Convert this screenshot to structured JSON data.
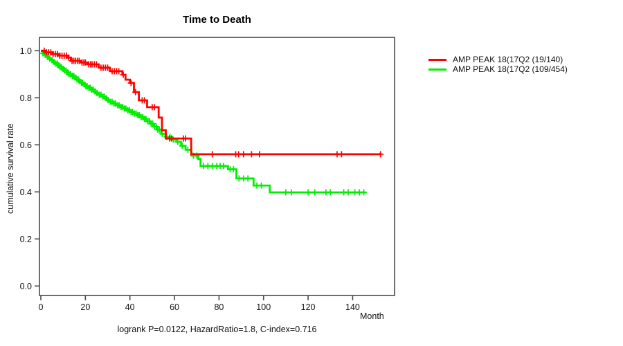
{
  "chart_data": {
    "type": "line",
    "subtype": "kaplan-meier-step",
    "title": "Time to Death",
    "xlabel": "Month",
    "ylabel": "cumulative survival rate",
    "annotation": "logrank P=0.0122, HazardRatio=1.8, C-index=0.716",
    "xticks": [
      0,
      20,
      40,
      60,
      80,
      100,
      120,
      140
    ],
    "yticks": [
      0.0,
      0.2,
      0.4,
      0.6,
      0.8,
      1.0
    ],
    "xlim": [
      -0.6,
      159
    ],
    "ylim": [
      -0.04,
      1.06
    ],
    "grid": false,
    "legend_position": "right-outside",
    "axis_color": "#4a4a4a",
    "tick_label_color": "#111111",
    "series": [
      {
        "name": "AMP PEAK 18(17Q2 (19/140)",
        "color": "#ff0000",
        "steps": [
          [
            0,
            1.0
          ],
          [
            2,
            0.993
          ],
          [
            5,
            0.986
          ],
          [
            8,
            0.979
          ],
          [
            12,
            0.971
          ],
          [
            13.5,
            0.957
          ],
          [
            18,
            0.95
          ],
          [
            21,
            0.942
          ],
          [
            26,
            0.928
          ],
          [
            31,
            0.913
          ],
          [
            36.6,
            0.898
          ],
          [
            38,
            0.877
          ],
          [
            40,
            0.863
          ],
          [
            41.8,
            0.824
          ],
          [
            44,
            0.789
          ],
          [
            47.7,
            0.76
          ],
          [
            52.9,
            0.716
          ],
          [
            54.4,
            0.662
          ],
          [
            56.1,
            0.627
          ],
          [
            67.5,
            0.56
          ],
          [
            153,
            0.56
          ]
        ],
        "censor_months": [
          1.5,
          2.5,
          3.5,
          4.5,
          5.5,
          6.5,
          7.5,
          8.5,
          9.5,
          10.5,
          11.5,
          12.5,
          14,
          14.8,
          15.6,
          16.4,
          17.2,
          18.5,
          19.3,
          20,
          21.5,
          22.3,
          23,
          24,
          25,
          27,
          28,
          29,
          30,
          32,
          33,
          34,
          35,
          37,
          40.5,
          42.5,
          45.5,
          46.5,
          50,
          51,
          57.8,
          58.7,
          64,
          65,
          77,
          87.5,
          88.8,
          91,
          94.6,
          98.2,
          133,
          135,
          152.5
        ]
      },
      {
        "name": "AMP PEAK 18(17Q2 (109/454)",
        "color": "#00ee00",
        "steps": [
          [
            0,
            1.0
          ],
          [
            0.8,
            0.989
          ],
          [
            1.5,
            0.982
          ],
          [
            2.5,
            0.974
          ],
          [
            3.5,
            0.967
          ],
          [
            4.5,
            0.96
          ],
          [
            5.5,
            0.952
          ],
          [
            6.5,
            0.945
          ],
          [
            7.5,
            0.938
          ],
          [
            8.5,
            0.93
          ],
          [
            9.5,
            0.923
          ],
          [
            10.5,
            0.916
          ],
          [
            11.5,
            0.908
          ],
          [
            12.5,
            0.9
          ],
          [
            14,
            0.893
          ],
          [
            15,
            0.886
          ],
          [
            16,
            0.878
          ],
          [
            17,
            0.871
          ],
          [
            18,
            0.864
          ],
          [
            19,
            0.857
          ],
          [
            20,
            0.849
          ],
          [
            21,
            0.842
          ],
          [
            22.5,
            0.835
          ],
          [
            24,
            0.827
          ],
          [
            25,
            0.82
          ],
          [
            26,
            0.813
          ],
          [
            27.5,
            0.805
          ],
          [
            29,
            0.798
          ],
          [
            30,
            0.79
          ],
          [
            31,
            0.783
          ],
          [
            32.5,
            0.776
          ],
          [
            34,
            0.768
          ],
          [
            35.5,
            0.761
          ],
          [
            37,
            0.754
          ],
          [
            38.5,
            0.747
          ],
          [
            40,
            0.74
          ],
          [
            41.5,
            0.733
          ],
          [
            43,
            0.726
          ],
          [
            44.5,
            0.718
          ],
          [
            46,
            0.71
          ],
          [
            47.5,
            0.7
          ],
          [
            49,
            0.69
          ],
          [
            50.5,
            0.678
          ],
          [
            52,
            0.665
          ],
          [
            54,
            0.647
          ],
          [
            56,
            0.634
          ],
          [
            58.5,
            0.622
          ],
          [
            60.9,
            0.613
          ],
          [
            63,
            0.596
          ],
          [
            65,
            0.579
          ],
          [
            67.6,
            0.554
          ],
          [
            70.7,
            0.54
          ],
          [
            71.7,
            0.51
          ],
          [
            84,
            0.496
          ],
          [
            87.8,
            0.457
          ],
          [
            95.5,
            0.427
          ],
          [
            102.8,
            0.398
          ],
          [
            146,
            0.398
          ]
        ],
        "censor_months": [
          1,
          2,
          3,
          4,
          5,
          6,
          6.7,
          7.4,
          8,
          8.6,
          9.3,
          10,
          10.6,
          11.3,
          12,
          12.6,
          13.3,
          14.2,
          14.8,
          15.4,
          16.2,
          16.8,
          17.4,
          18.2,
          18.8,
          19.5,
          20.2,
          20.8,
          21.6,
          22.2,
          22.8,
          23.5,
          24.3,
          25.2,
          26.2,
          27,
          27.8,
          28.5,
          29.3,
          30.2,
          31.2,
          32,
          32.8,
          33.5,
          34.5,
          35.2,
          36,
          36.8,
          37.5,
          38.2,
          39,
          39.8,
          40.5,
          41.2,
          42,
          42.8,
          43.5,
          44.2,
          45,
          45.8,
          46.5,
          47.2,
          48,
          48.8,
          49.5,
          50.2,
          51,
          51.8,
          52.5,
          53.2,
          54.5,
          56.5,
          58,
          59.5,
          61.5,
          63.5,
          66,
          68.5,
          70,
          73,
          75,
          77,
          79,
          80.5,
          82,
          85,
          86.5,
          89,
          91,
          93,
          97,
          99,
          110,
          112.5,
          120,
          123,
          128,
          130,
          136,
          138,
          141,
          143,
          145
        ]
      }
    ]
  }
}
